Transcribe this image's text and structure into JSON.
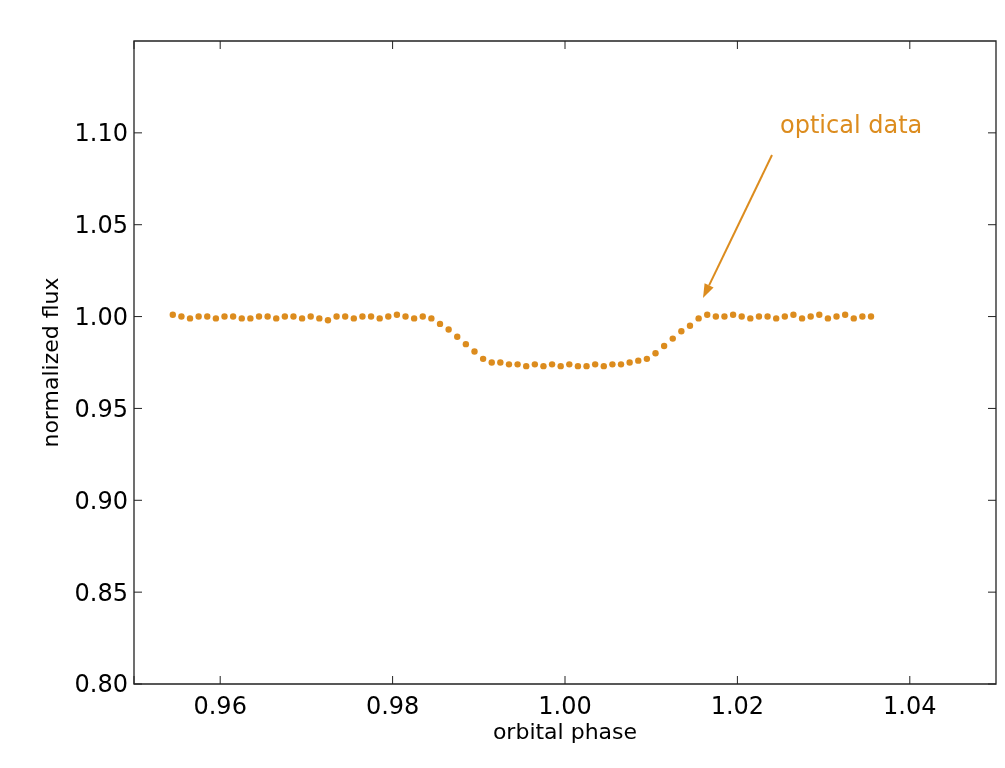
{
  "chart_data": {
    "type": "scatter",
    "xlabel": "orbital phase",
    "ylabel": "normalized flux",
    "xlim": [
      0.95,
      1.05
    ],
    "xticks": [
      {
        "value": 0.95,
        "label": null
      },
      {
        "value": 0.96,
        "label": "0.96"
      },
      {
        "value": 0.98,
        "label": "0.98"
      },
      {
        "value": 1.0,
        "label": "1.00"
      },
      {
        "value": 1.02,
        "label": "1.02"
      },
      {
        "value": 1.04,
        "label": "1.04"
      }
    ],
    "ylim": [
      0.8,
      1.15
    ],
    "yticks": [
      {
        "value": 0.8,
        "label": "0.80"
      },
      {
        "value": 0.85,
        "label": "0.85"
      },
      {
        "value": 0.9,
        "label": "0.90"
      },
      {
        "value": 0.95,
        "label": "0.95"
      },
      {
        "value": 1.0,
        "label": "1.00"
      },
      {
        "value": 1.05,
        "label": "1.05"
      },
      {
        "value": 1.1,
        "label": "1.10"
      }
    ],
    "marker": "circle",
    "grid": false,
    "annotations": [
      "optical data"
    ],
    "series": [
      {
        "color": "#dc8c1e",
        "x": [
          0.9545,
          0.9555,
          0.9565,
          0.9575,
          0.9585,
          0.9595,
          0.9605,
          0.9615,
          0.9625,
          0.9635,
          0.9645,
          0.9655,
          0.9665,
          0.9675,
          0.9685,
          0.9695,
          0.9705,
          0.9715,
          0.9725,
          0.9735,
          0.9745,
          0.9755,
          0.9765,
          0.9775,
          0.9785,
          0.9795,
          0.9805,
          0.9815,
          0.9825,
          0.9835,
          0.9845,
          0.9855,
          0.9865,
          0.9875,
          0.9885,
          0.9895,
          0.9905,
          0.9915,
          0.9925,
          0.9935,
          0.9945,
          0.9955,
          0.9965,
          0.9975,
          0.9985,
          0.9995,
          1.0005,
          1.0015,
          1.0025,
          1.0035,
          1.0045,
          1.0055,
          1.0065,
          1.0075,
          1.0085,
          1.0095,
          1.0105,
          1.0115,
          1.0125,
          1.0135,
          1.0145,
          1.0155,
          1.0165,
          1.0175,
          1.0185,
          1.0195,
          1.0205,
          1.0215,
          1.0225,
          1.0235,
          1.0245,
          1.0255,
          1.0265,
          1.0275,
          1.0285,
          1.0295,
          1.0305,
          1.0315,
          1.0325,
          1.0335,
          1.0345,
          1.0355
        ],
        "values": [
          1.001,
          1.0,
          0.999,
          1.0,
          1.0,
          0.999,
          1.0,
          1.0,
          0.999,
          0.999,
          1.0,
          1.0,
          0.999,
          1.0,
          1.0,
          0.999,
          1.0,
          0.999,
          0.998,
          1.0,
          1.0,
          0.999,
          1.0,
          1.0,
          0.999,
          1.0,
          1.001,
          1.0,
          0.999,
          1.0,
          0.999,
          0.996,
          0.993,
          0.989,
          0.985,
          0.981,
          0.977,
          0.975,
          0.975,
          0.974,
          0.974,
          0.973,
          0.974,
          0.973,
          0.974,
          0.973,
          0.974,
          0.973,
          0.973,
          0.974,
          0.973,
          0.974,
          0.974,
          0.975,
          0.976,
          0.977,
          0.98,
          0.984,
          0.988,
          0.992,
          0.995,
          0.999,
          1.001,
          1.0,
          1.0,
          1.001,
          1.0,
          0.999,
          1.0,
          1.0,
          0.999,
          1.0,
          1.001,
          0.999,
          1.0,
          1.001,
          0.999,
          1.0,
          1.001,
          0.999,
          1.0,
          1.0
        ]
      }
    ]
  }
}
